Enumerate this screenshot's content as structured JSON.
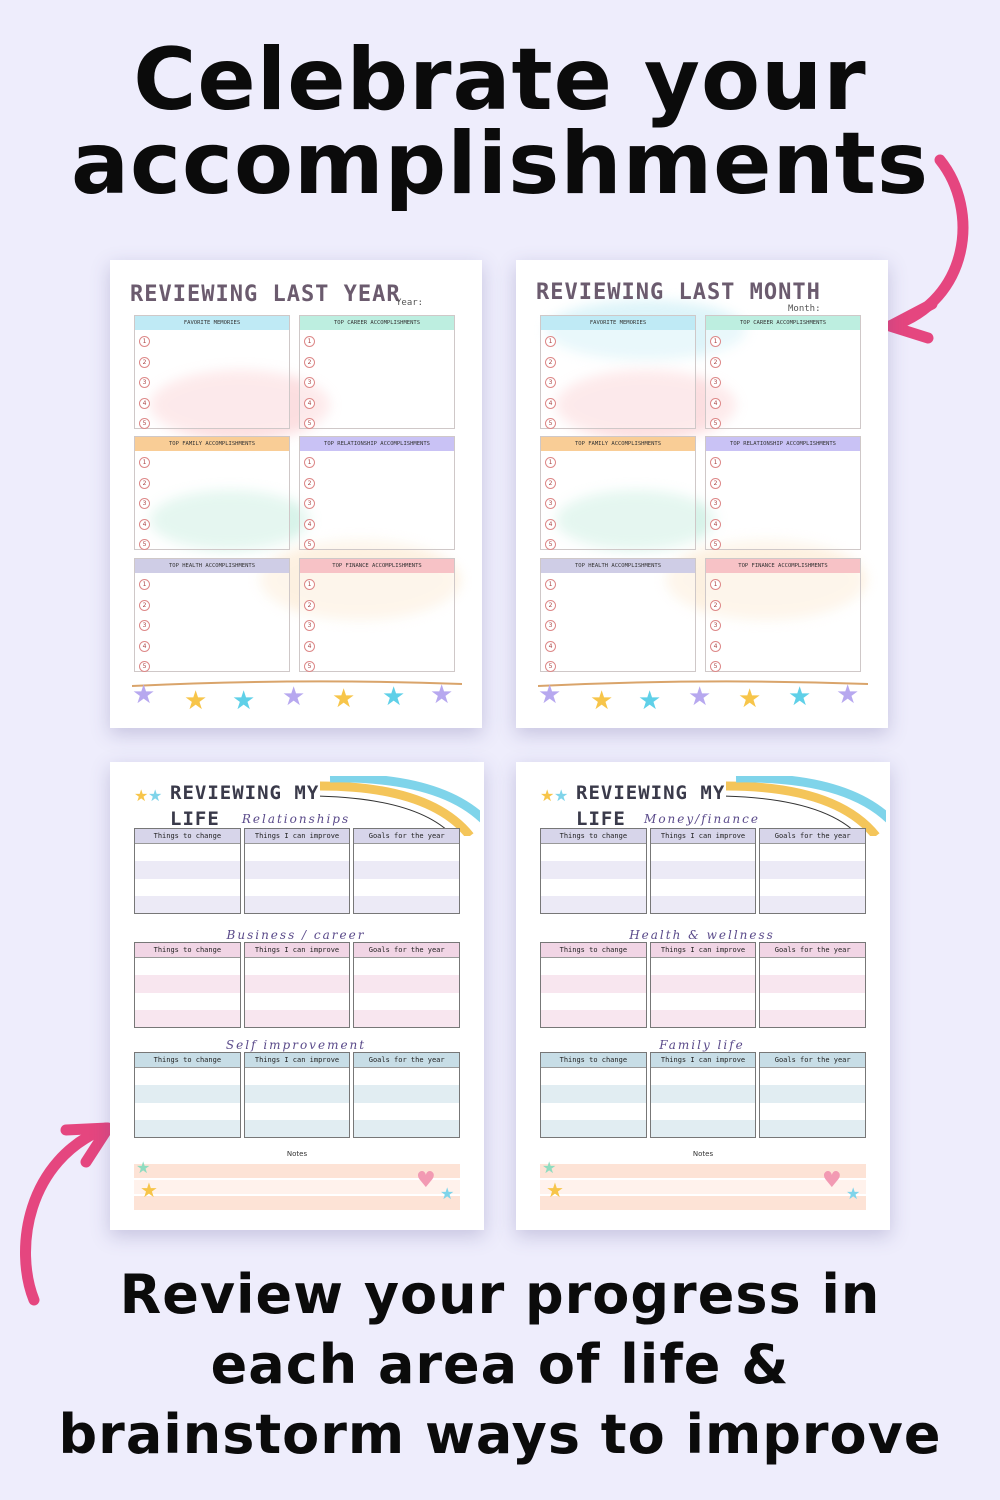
{
  "headline_top": "Celebrate your accomplishments",
  "headline_top_lines": [
    "Celebrate your",
    "accomplishments"
  ],
  "headline_bottom_lines": [
    "Review your progress in",
    "each area of life &",
    "brainstorm ways to improve"
  ],
  "colors": {
    "background": "#eeedfc",
    "arrow": "#e5467f",
    "memories": "#bfeaf5",
    "career": "#bdeee0",
    "family": "#f9cd96",
    "relationship": "#c9c2f5",
    "health": "#cfcde6",
    "finance": "#f7c2c6",
    "purple_rows": "#d7d5ea",
    "pink_rows": "#f1d5e5",
    "blue_rows": "#c7dde6"
  },
  "pages": [
    {
      "title": "REVIEWING LAST YEAR",
      "subtitle": "Year:",
      "boxes": [
        {
          "label": "FAVORITE MEMORIES",
          "color": "#bfeaf5"
        },
        {
          "label": "TOP CAREER ACCOMPLISHMENTS",
          "color": "#bdeee0"
        },
        {
          "label": "TOP FAMILY ACCOMPLISHMENTS",
          "color": "#f9cd96"
        },
        {
          "label": "TOP RELATIONSHIP ACCOMPLISHMENTS",
          "color": "#c9c2f5"
        },
        {
          "label": "TOP HEALTH ACCOMPLISHMENTS",
          "color": "#cfcde6"
        },
        {
          "label": "TOP FINANCE ACCOMPLISHMENTS",
          "color": "#f7c2c6"
        }
      ],
      "numbers": [
        "1",
        "2",
        "3",
        "4",
        "5"
      ]
    },
    {
      "title": "REVIEWING LAST MONTH",
      "subtitle": "Month:",
      "boxes": [
        {
          "label": "FAVORITE MEMORIES",
          "color": "#bfeaf5"
        },
        {
          "label": "TOP CAREER ACCOMPLISHMENTS",
          "color": "#bdeee0"
        },
        {
          "label": "TOP FAMILY ACCOMPLISHMENTS",
          "color": "#f9cd96"
        },
        {
          "label": "TOP RELATIONSHIP ACCOMPLISHMENTS",
          "color": "#c9c2f5"
        },
        {
          "label": "TOP HEALTH ACCOMPLISHMENTS",
          "color": "#cfcde6"
        },
        {
          "label": "TOP FINANCE ACCOMPLISHMENTS",
          "color": "#f7c2c6"
        }
      ],
      "numbers": [
        "1",
        "2",
        "3",
        "4",
        "5"
      ]
    },
    {
      "title_line1": "REVIEWING MY",
      "title_line2": "LIFE",
      "sections": [
        "Relationships",
        "Business / career",
        "Self improvement"
      ],
      "columns": [
        "Things to change",
        "Things I can improve",
        "Goals for the year"
      ],
      "notes": "Notes"
    },
    {
      "title_line1": "REVIEWING MY",
      "title_line2": "LIFE",
      "sections": [
        "Money/finance",
        "Health & wellness",
        "Family life"
      ],
      "columns": [
        "Things to change",
        "Things I can improve",
        "Goals for the year"
      ],
      "notes": "Notes"
    }
  ]
}
